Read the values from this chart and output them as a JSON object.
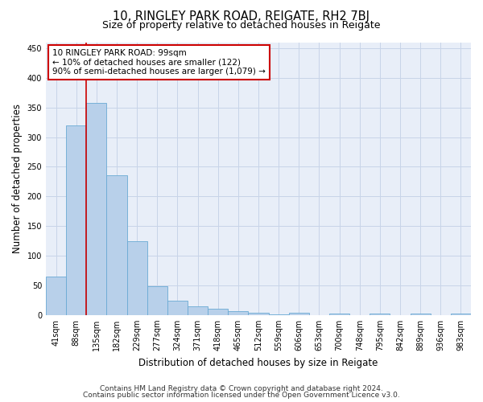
{
  "title": "10, RINGLEY PARK ROAD, REIGATE, RH2 7BJ",
  "subtitle": "Size of property relative to detached houses in Reigate",
  "xlabel": "Distribution of detached houses by size in Reigate",
  "ylabel": "Number of detached properties",
  "categories": [
    "41sqm",
    "88sqm",
    "135sqm",
    "182sqm",
    "229sqm",
    "277sqm",
    "324sqm",
    "371sqm",
    "418sqm",
    "465sqm",
    "512sqm",
    "559sqm",
    "606sqm",
    "653sqm",
    "700sqm",
    "748sqm",
    "795sqm",
    "842sqm",
    "889sqm",
    "936sqm",
    "983sqm"
  ],
  "values": [
    65,
    320,
    358,
    235,
    125,
    48,
    24,
    14,
    10,
    6,
    4,
    1,
    4,
    0,
    3,
    0,
    3,
    0,
    3,
    0,
    3
  ],
  "bar_color": "#b8d0ea",
  "bar_edge_color": "#6aaad4",
  "highlight_index": 1,
  "highlight_line_color": "#cc0000",
  "annotation_line1": "10 RINGLEY PARK ROAD: 99sqm",
  "annotation_line2": "← 10% of detached houses are smaller (122)",
  "annotation_line3": "90% of semi-detached houses are larger (1,079) →",
  "annotation_box_color": "#cc0000",
  "ylim": [
    0,
    460
  ],
  "yticks": [
    0,
    50,
    100,
    150,
    200,
    250,
    300,
    350,
    400,
    450
  ],
  "grid_color": "#c8d4e8",
  "background_color": "#e8eef8",
  "footer_line1": "Contains HM Land Registry data © Crown copyright and database right 2024.",
  "footer_line2": "Contains public sector information licensed under the Open Government Licence v3.0.",
  "title_fontsize": 10.5,
  "subtitle_fontsize": 9,
  "axis_label_fontsize": 8.5,
  "tick_fontsize": 7,
  "annotation_fontsize": 7.5,
  "footer_fontsize": 6.5
}
